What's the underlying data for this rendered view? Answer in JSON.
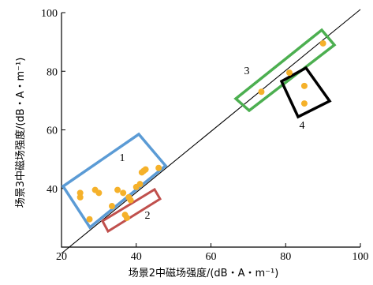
{
  "chart_data": {
    "type": "scatter",
    "xlabel": "场景2中磁场强度/(dB・A・m⁻¹)",
    "ylabel": "场景3中磁场强度/(dB・A・m⁻¹)",
    "xlim": [
      20,
      100
    ],
    "ylim": [
      20,
      100
    ],
    "x_ticks": [
      20,
      40,
      60,
      80,
      100
    ],
    "y_ticks": [
      40,
      60,
      80,
      100
    ],
    "grid": false,
    "reference_line": {
      "x": [
        20,
        100
      ],
      "y": [
        20,
        100
      ],
      "color": "#000000"
    },
    "point_color": "#f5b12a",
    "series": [
      {
        "values": [
          [
            25.0,
            38.5
          ],
          [
            25.0,
            37.0
          ],
          [
            27.5,
            29.5
          ],
          [
            29.0,
            39.5
          ],
          [
            30.0,
            38.5
          ],
          [
            33.5,
            34.0
          ],
          [
            35.0,
            39.5
          ],
          [
            36.5,
            38.5
          ],
          [
            37.0,
            31.0
          ],
          [
            37.5,
            30.0
          ],
          [
            38.0,
            37.0
          ],
          [
            38.5,
            36.0
          ],
          [
            40.0,
            40.5
          ],
          [
            41.0,
            41.5
          ],
          [
            41.5,
            45.5
          ],
          [
            42.0,
            46.0
          ],
          [
            42.5,
            46.5
          ],
          [
            46.0,
            47.0
          ],
          [
            73.5,
            73.0
          ],
          [
            81.0,
            79.5
          ],
          [
            85.0,
            75.0
          ],
          [
            85.0,
            69.0
          ],
          [
            90.0,
            89.5
          ]
        ]
      }
    ],
    "boxes": [
      {
        "label": "1",
        "color": "#5b9bd5"
      },
      {
        "label": "2",
        "color": "#c0504d"
      },
      {
        "label": "3",
        "color": "#4caf50"
      },
      {
        "label": "4",
        "color": "#000000"
      }
    ]
  }
}
